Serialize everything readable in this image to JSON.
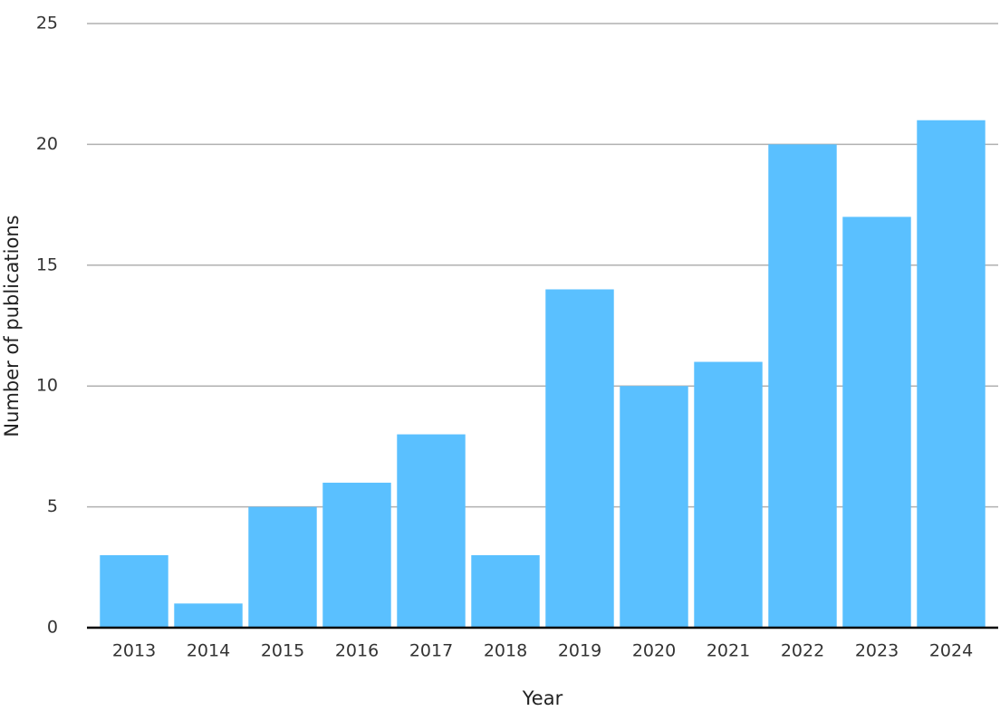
{
  "chart_data": {
    "type": "bar",
    "x_label": "Year",
    "y_label": "Number of publications",
    "categories": [
      "2013",
      "2014",
      "2015",
      "2016",
      "2017",
      "2018",
      "2019",
      "2020",
      "2021",
      "2022",
      "2023",
      "2024"
    ],
    "values": [
      3,
      1,
      5,
      6,
      8,
      3,
      14,
      10,
      11,
      20,
      17,
      21
    ],
    "color": "#5ac0ff",
    "ylim": [
      0,
      25
    ],
    "yticks": [
      0,
      5,
      10,
      15,
      20,
      25
    ],
    "grid": true
  }
}
